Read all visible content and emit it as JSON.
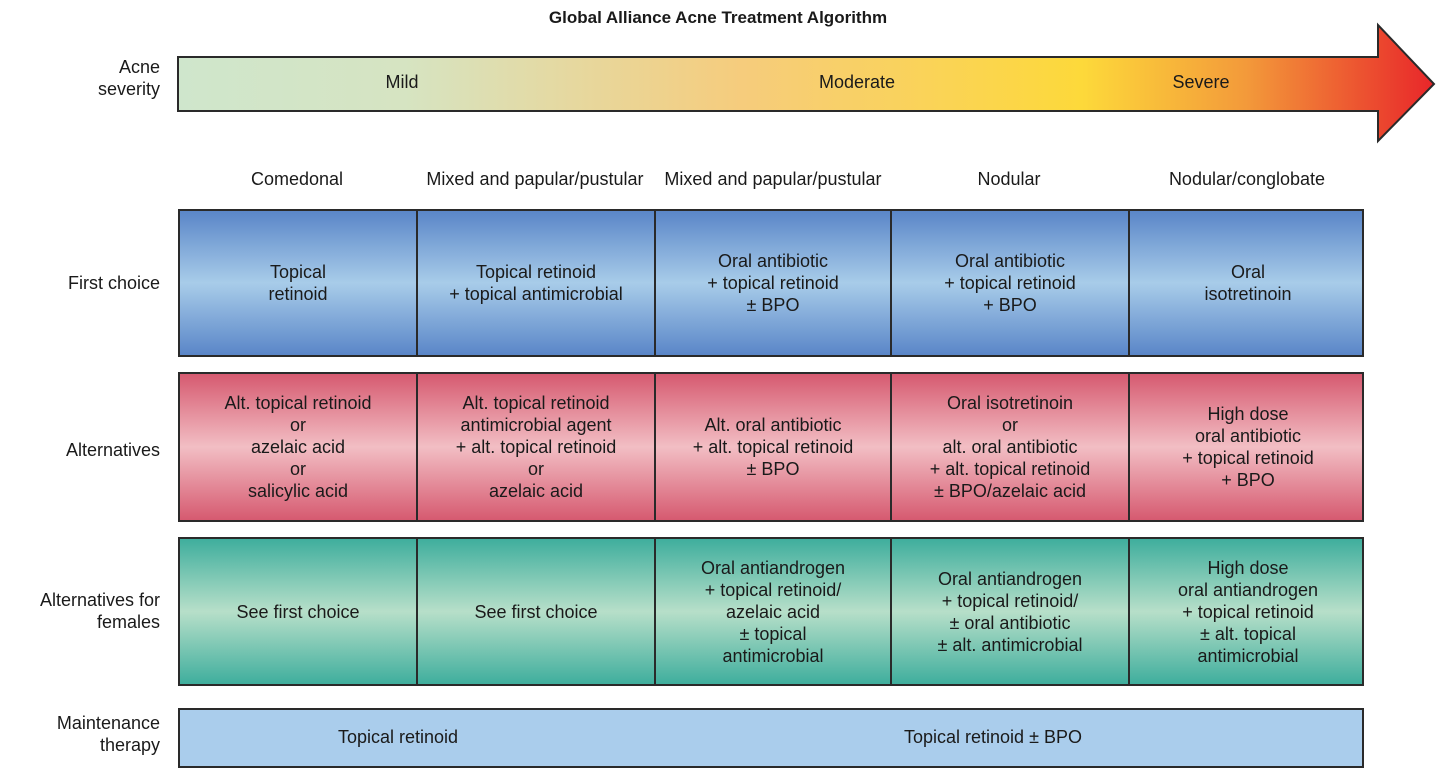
{
  "title": "Global Alliance Acne Treatment Algorithm",
  "row_labels": {
    "severity": "Acne\nseverity",
    "first_choice": "First choice",
    "alternatives": "Alternatives",
    "alternatives_females": "Alternatives for\nfemales",
    "maintenance": "Maintenance\ntherapy"
  },
  "severity_levels": [
    "Mild",
    "Moderate",
    "Severe"
  ],
  "columns": [
    "Comedonal",
    "Mixed and\npapular/pustular",
    "Mixed and\npapular/pustular",
    "Nodular",
    "Nodular/conglobate"
  ],
  "first_choice": [
    "Topical\nretinoid",
    "Topical retinoid\n+ topical antimicrobial",
    "Oral antibiotic\n+ topical retinoid\n± BPO",
    "Oral antibiotic\n+ topical retinoid\n+ BPO",
    "Oral\nisotretinoin"
  ],
  "alternatives": [
    "Alt. topical retinoid\nor\nazelaic acid\nor\nsalicylic acid",
    "Alt. topical retinoid\nantimicrobial agent\n+ alt. topical retinoid\nor\nazelaic acid",
    "Alt. oral antibiotic\n+ alt. topical retinoid\n± BPO",
    "Oral isotretinoin\nor\nalt. oral antibiotic\n+ alt. topical retinoid\n± BPO/azelaic acid",
    "High dose\noral antibiotic\n+ topical retinoid\n+ BPO"
  ],
  "alternatives_females": [
    "See first choice",
    "See first choice",
    "Oral antiandrogen\n+ topical retinoid/\nazelaic acid\n± topical\nantimicrobial",
    "Oral antiandrogen\n+ topical retinoid/\n± oral antibiotic\n± alt. antimicrobial",
    "High dose\noral antiandrogen\n+ topical retinoid\n± alt. topical\nantimicrobial"
  ],
  "maintenance": [
    "Topical retinoid",
    "Topical retinoid ± BPO"
  ],
  "colors": {
    "severity_gradient": [
      "#cfe6cc",
      "#f6cc7c",
      "#fdd93a",
      "#e8262a"
    ],
    "first_choice": "#a8cce9",
    "alternatives": "#f2bec4",
    "alternatives_females": "#b7dfc9",
    "maintenance": "#aacdec"
  }
}
